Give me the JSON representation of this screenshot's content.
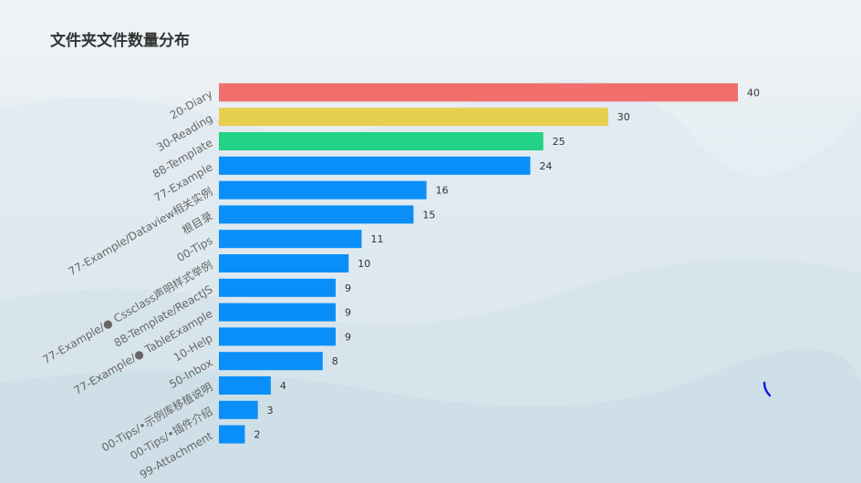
{
  "title": "文件夹文件数量分布",
  "colors": {
    "default": "#0a8ff8",
    "highlight": [
      "#f06e6b",
      "#e6ce4f",
      "#22d385"
    ]
  },
  "chart_data": {
    "type": "bar",
    "orientation": "horizontal",
    "title": "文件夹文件数量分布",
    "categories": [
      "20-Diary",
      "30-Reading",
      "88-Template",
      "77-Example",
      "77-Example/Dataview相关实例",
      "根目录",
      "00-Tips",
      "77-Example/● Cssclass声明样式举例",
      "88-Template/ReactJS",
      "77-Example/● TableExample",
      "10-Help",
      "50-Inbox",
      "00-Tips/•示例库移植说明",
      "00-Tips/•插件介绍",
      "99-Attachment"
    ],
    "values": [
      40,
      30,
      25,
      24,
      16,
      15,
      11,
      10,
      9,
      9,
      9,
      8,
      4,
      3,
      2
    ],
    "xlim": [
      0,
      40
    ],
    "grid": false,
    "legend": "none"
  }
}
